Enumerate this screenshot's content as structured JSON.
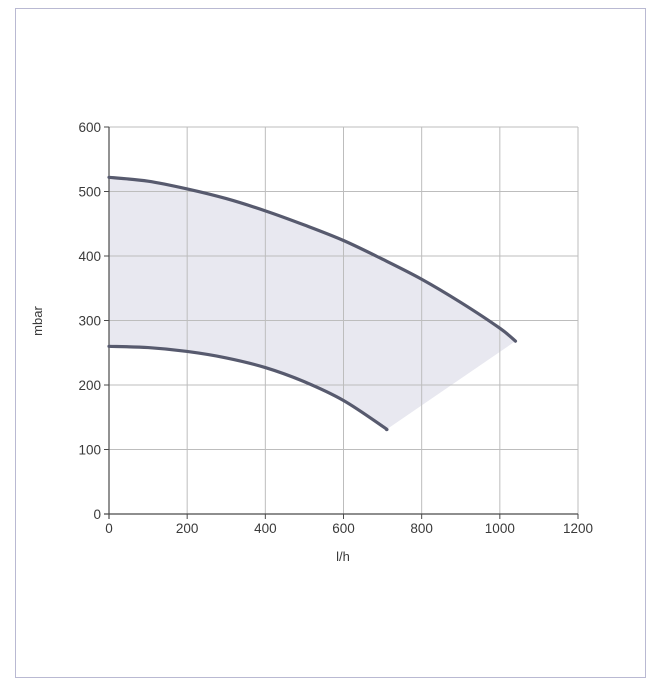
{
  "chart_data": {
    "type": "area",
    "title": "",
    "xlabel": "l/h",
    "ylabel": "mbar",
    "xlim": [
      0,
      1200
    ],
    "ylim": [
      0,
      600
    ],
    "x_ticks": [
      0,
      200,
      400,
      600,
      800,
      1000,
      1200
    ],
    "y_ticks": [
      0,
      100,
      200,
      300,
      400,
      500,
      600
    ],
    "grid": true,
    "colors": {
      "curve": "#575a6e",
      "band_fill": "#e8e8f0",
      "grid": "#bdbdbd",
      "axis": "#4a4a4a",
      "frame": "#b9b9d2"
    },
    "series": [
      {
        "values": [
          {
            "x": 0,
            "y": 522
          },
          {
            "x": 100,
            "y": 516
          },
          {
            "x": 200,
            "y": 504
          },
          {
            "x": 300,
            "y": 489
          },
          {
            "x": 400,
            "y": 470
          },
          {
            "x": 500,
            "y": 448
          },
          {
            "x": 600,
            "y": 424
          },
          {
            "x": 700,
            "y": 395
          },
          {
            "x": 800,
            "y": 364
          },
          {
            "x": 900,
            "y": 328
          },
          {
            "x": 1000,
            "y": 288
          },
          {
            "x": 1040,
            "y": 268
          }
        ]
      },
      {
        "values": [
          {
            "x": 0,
            "y": 260
          },
          {
            "x": 100,
            "y": 258
          },
          {
            "x": 200,
            "y": 252
          },
          {
            "x": 300,
            "y": 242
          },
          {
            "x": 400,
            "y": 227
          },
          {
            "x": 500,
            "y": 205
          },
          {
            "x": 600,
            "y": 176
          },
          {
            "x": 700,
            "y": 136
          },
          {
            "x": 710,
            "y": 131
          }
        ]
      }
    ]
  }
}
